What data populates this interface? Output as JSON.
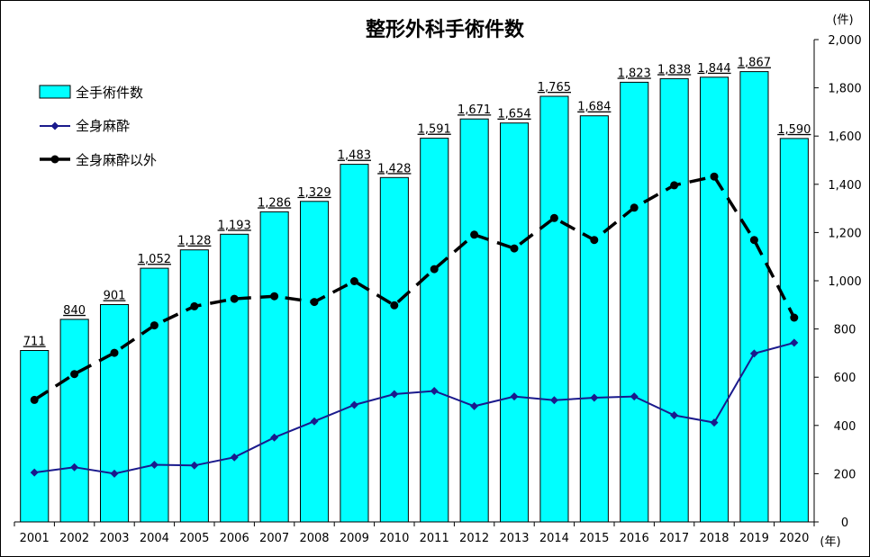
{
  "chart_data": {
    "type": "bar",
    "title": "整形外科手術件数",
    "y_unit": "(件)",
    "x_unit": "(年)",
    "ylim": [
      0,
      2000
    ],
    "y_ticks": [
      "0",
      "200",
      "400",
      "600",
      "800",
      "1,000",
      "1,200",
      "1,400",
      "1,600",
      "1,800",
      "2,000"
    ],
    "y_tick_values": [
      0,
      200,
      400,
      600,
      800,
      1000,
      1200,
      1400,
      1600,
      1800,
      2000
    ],
    "grid": false,
    "legend_position": "top-left",
    "categories": [
      "2001",
      "2002",
      "2003",
      "2004",
      "2005",
      "2006",
      "2007",
      "2008",
      "2009",
      "2010",
      "2011",
      "2012",
      "2013",
      "2014",
      "2015",
      "2016",
      "2017",
      "2018",
      "2019",
      "2020"
    ],
    "series": [
      {
        "name": "全手術件数",
        "kind": "bar",
        "color": "#00ffff",
        "values": [
          711,
          840,
          901,
          1052,
          1128,
          1193,
          1286,
          1329,
          1483,
          1428,
          1591,
          1671,
          1654,
          1765,
          1684,
          1823,
          1838,
          1844,
          1867,
          1590
        ],
        "labels": [
          "711",
          "840",
          "901",
          "1,052",
          "1,128",
          "1,193",
          "1,286",
          "1,329",
          "1,483",
          "1,428",
          "1,591",
          "1,671",
          "1,654",
          "1,765",
          "1,684",
          "1,823",
          "1,838",
          "1,844",
          "1,867",
          "1,590"
        ]
      },
      {
        "name": "全身麻酔",
        "kind": "line",
        "color": "#1a1a8c",
        "values": [
          205,
          227,
          200,
          237,
          234,
          268,
          350,
          417,
          485,
          530,
          543,
          480,
          520,
          505,
          515,
          520,
          442,
          412,
          698,
          743
        ]
      },
      {
        "name": "全身麻酔以外",
        "kind": "line-dashed",
        "color": "#000000",
        "values": [
          506,
          613,
          701,
          815,
          894,
          925,
          936,
          912,
          998,
          898,
          1048,
          1191,
          1134,
          1260,
          1169,
          1303,
          1396,
          1432,
          1169,
          847
        ]
      }
    ]
  }
}
